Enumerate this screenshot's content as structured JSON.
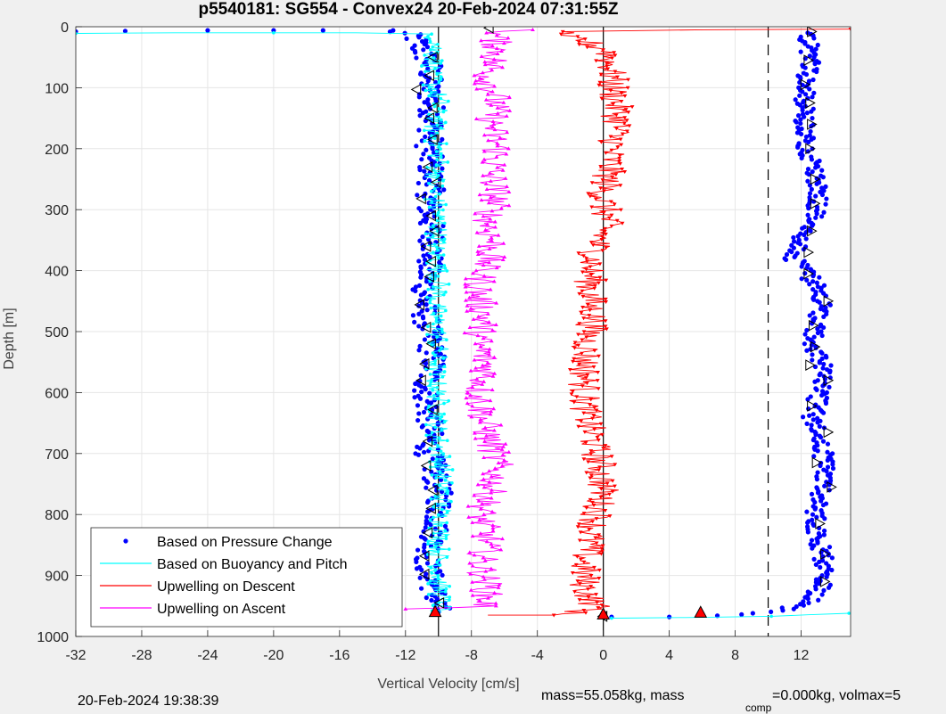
{
  "chart_data": {
    "type": "scatter",
    "title": "p5540181: SG554 - Convex24 20-Feb-2024 07:31:55Z",
    "xlabel": "Vertical Velocity [cm/s]",
    "ylabel": "Depth [m]",
    "xlim": [
      -32,
      15
    ],
    "ylim": [
      0,
      1000
    ],
    "y_reversed": true,
    "grid": true,
    "x_ticks": [
      -32,
      -28,
      -24,
      -20,
      -16,
      -12,
      -8,
      -4,
      0,
      4,
      8,
      12
    ],
    "x_tick_labels": [
      "-32",
      "-28",
      "-24",
      "-20",
      "-16",
      "-12",
      "-8",
      "-4",
      "0",
      "4",
      "8",
      "12"
    ],
    "y_ticks": [
      0,
      100,
      200,
      300,
      400,
      500,
      600,
      700,
      800,
      900,
      1000
    ],
    "y_tick_labels": [
      "0",
      "100",
      "200",
      "300",
      "400",
      "500",
      "600",
      "700",
      "800",
      "900",
      "1000"
    ],
    "reference_lines": [
      {
        "x": -10,
        "style": "solid",
        "color": "#000000"
      },
      {
        "x": 0,
        "style": "solid",
        "color": "#000000"
      },
      {
        "x": 10,
        "style": "dashed",
        "color": "#000000"
      }
    ],
    "legend": {
      "placement": "bottom-left",
      "entries": [
        {
          "label": "Based on Pressure Change",
          "color": "#0000ff",
          "marker": "dot"
        },
        {
          "label": "Based on Buoyancy and Pitch",
          "color": "#00ffff",
          "marker": "line"
        },
        {
          "label": "Upwelling on Descent",
          "color": "#ff0000",
          "marker": "line"
        },
        {
          "label": "Upwelling on Ascent",
          "color": "#ff00ff",
          "marker": "line"
        }
      ]
    },
    "series": [
      {
        "name": "Based on Pressure Change",
        "color": "#0000ff",
        "segments": [
          {
            "base": [
              [
                -32,
                8
              ],
              [
                -29,
                7
              ],
              [
                -24,
                6
              ],
              [
                -20,
                6
              ],
              [
                -17,
                6
              ],
              [
                -13,
                6
              ],
              [
                -11.5,
                15
              ],
              [
                -11,
                40
              ],
              [
                -10.5,
                60
              ],
              [
                -10.6,
                100
              ],
              [
                -10.3,
                150
              ],
              [
                -10.6,
                200
              ],
              [
                -10.4,
                250
              ],
              [
                -10.6,
                300
              ],
              [
                -10.3,
                360
              ],
              [
                -10.7,
                400
              ],
              [
                -10.9,
                460
              ],
              [
                -10.6,
                500
              ],
              [
                -10.3,
                550
              ],
              [
                -10.8,
                590
              ],
              [
                -10.5,
                650
              ],
              [
                -10.6,
                700
              ],
              [
                -10.2,
                730
              ],
              [
                -9.9,
                780
              ],
              [
                -10.2,
                830
              ],
              [
                -10.7,
                880
              ],
              [
                -10.2,
                930
              ],
              [
                -10.0,
                960
              ]
            ],
            "jitter": 0.8
          },
          {
            "base": [
              [
                0.5,
                968
              ],
              [
                4,
                968
              ],
              [
                7,
                966
              ],
              [
                9,
                962
              ],
              [
                11,
                955
              ],
              [
                12.5,
                945
              ],
              [
                13.2,
                920
              ],
              [
                13.4,
                880
              ],
              [
                13.1,
                840
              ],
              [
                12.8,
                800
              ],
              [
                13.3,
                760
              ],
              [
                13.5,
                720
              ],
              [
                13.1,
                680
              ],
              [
                12.7,
                640
              ],
              [
                13.1,
                600
              ],
              [
                13.3,
                560
              ],
              [
                12.7,
                520
              ],
              [
                12.9,
                480
              ],
              [
                13.3,
                450
              ],
              [
                12.8,
                420
              ],
              [
                12.2,
                400
              ],
              [
                11.6,
                380
              ],
              [
                12.0,
                350
              ],
              [
                12.7,
                320
              ],
              [
                13.1,
                280
              ],
              [
                12.9,
                240
              ],
              [
                12.4,
                200
              ],
              [
                12.2,
                150
              ],
              [
                12.2,
                100
              ],
              [
                12.6,
                50
              ],
              [
                12.4,
                10
              ]
            ],
            "jitter": 0.6
          }
        ]
      },
      {
        "name": "Based on Buoyancy and Pitch",
        "color": "#00ffff",
        "segments": [
          {
            "base": [
              [
                -32,
                11
              ],
              [
                -26,
                10
              ],
              [
                -20,
                10
              ],
              [
                -15,
                10
              ],
              [
                -11,
                12
              ],
              [
                -10,
                20
              ],
              [
                -10.2,
                40
              ],
              [
                -10.5,
                80
              ],
              [
                -10.0,
                120
              ],
              [
                -10.3,
                170
              ],
              [
                -10.0,
                220
              ],
              [
                -10.3,
                270
              ],
              [
                -10.0,
                320
              ],
              [
                -10.2,
                370
              ],
              [
                -10.0,
                420
              ],
              [
                -10.2,
                470
              ],
              [
                -10.0,
                520
              ],
              [
                -10.2,
                570
              ],
              [
                -10.0,
                620
              ],
              [
                -10.1,
                670
              ],
              [
                -9.8,
                720
              ],
              [
                -9.8,
                770
              ],
              [
                -9.9,
                820
              ],
              [
                -10.0,
                870
              ],
              [
                -10.0,
                920
              ],
              [
                -9.8,
                960
              ]
            ],
            "jitter": 0.7
          },
          {
            "base": [
              [
                0.5,
                970
              ],
              [
                5,
                969
              ],
              [
                10,
                967
              ],
              [
                14.9,
                962
              ]
            ],
            "jitter": 0.2
          }
        ]
      },
      {
        "name": "Upwelling on Descent",
        "color": "#ff0000",
        "segments": [
          {
            "base": [
              [
                15,
                4
              ],
              [
                6,
                5
              ],
              [
                -2,
                8
              ],
              [
                -3.5,
                12
              ],
              [
                -1.5,
                20
              ],
              [
                0.3,
                40
              ],
              [
                0.5,
                80
              ],
              [
                0.7,
                120
              ],
              [
                0.9,
                160
              ],
              [
                0.5,
                200
              ],
              [
                0.3,
                240
              ],
              [
                0.0,
                280
              ],
              [
                0.2,
                320
              ],
              [
                -0.4,
                360
              ],
              [
                -0.8,
                400
              ],
              [
                -0.8,
                440
              ],
              [
                -0.6,
                480
              ],
              [
                -1.0,
                520
              ],
              [
                -1.1,
                560
              ],
              [
                -1.2,
                600
              ],
              [
                -1.0,
                640
              ],
              [
                -0.6,
                680
              ],
              [
                -0.2,
                720
              ],
              [
                0.0,
                760
              ],
              [
                -0.4,
                800
              ],
              [
                -0.8,
                840
              ],
              [
                -1.2,
                880
              ],
              [
                -1.1,
                920
              ],
              [
                -0.4,
                955
              ],
              [
                -3.0,
                965
              ],
              [
                -7.0,
                965
              ]
            ],
            "jitter": 1.0
          }
        ]
      },
      {
        "name": "Upwelling on Ascent",
        "color": "#ff00ff",
        "segments": [
          {
            "base": [
              [
                -4.0,
                5
              ],
              [
                -6.6,
                10
              ],
              [
                -6.4,
                40
              ],
              [
                -7.0,
                80
              ],
              [
                -6.5,
                120
              ],
              [
                -6.8,
                160
              ],
              [
                -6.4,
                200
              ],
              [
                -6.8,
                240
              ],
              [
                -6.5,
                280
              ],
              [
                -7.0,
                320
              ],
              [
                -6.7,
                360
              ],
              [
                -7.3,
                400
              ],
              [
                -7.6,
                440
              ],
              [
                -7.2,
                480
              ],
              [
                -7.6,
                520
              ],
              [
                -7.0,
                560
              ],
              [
                -7.6,
                600
              ],
              [
                -7.3,
                640
              ],
              [
                -6.9,
                680
              ],
              [
                -6.4,
                720
              ],
              [
                -6.8,
                760
              ],
              [
                -7.4,
                800
              ],
              [
                -7.0,
                840
              ],
              [
                -7.4,
                880
              ],
              [
                -7.0,
                920
              ],
              [
                -7.2,
                950
              ],
              [
                -12.0,
                955
              ]
            ],
            "jitter": 1.0
          }
        ]
      },
      {
        "name": "Descent heading markers",
        "color": "#000000",
        "marker": "triangle-left",
        "points": [
          [
            -6.9,
            2
          ],
          [
            -10.3,
            50
          ],
          [
            -10.5,
            80
          ],
          [
            -11.3,
            103
          ],
          [
            -10.3,
            133
          ],
          [
            -10.5,
            150
          ],
          [
            -10.3,
            185
          ],
          [
            -10.6,
            230
          ],
          [
            -10.1,
            255
          ],
          [
            -11.0,
            282
          ],
          [
            -10.4,
            310
          ],
          [
            -10.2,
            335
          ],
          [
            -10.7,
            360
          ],
          [
            -10.4,
            385
          ],
          [
            -10.5,
            410
          ],
          [
            -11.1,
            456
          ],
          [
            -10.7,
            493
          ],
          [
            -10.4,
            520
          ],
          [
            -10.8,
            553
          ],
          [
            -11.0,
            580
          ],
          [
            -10.3,
            628
          ],
          [
            -10.6,
            680
          ],
          [
            -10.7,
            720
          ],
          [
            -10.3,
            760
          ],
          [
            -10.4,
            790
          ],
          [
            -10.6,
            830
          ],
          [
            -10.8,
            868
          ],
          [
            -10.8,
            898
          ],
          [
            -9.9,
            945
          ],
          [
            0.0,
            967
          ]
        ]
      },
      {
        "name": "Ascent heading markers",
        "color": "#000000",
        "marker": "triangle-right",
        "points": [
          [
            12.6,
            8
          ],
          [
            12.4,
            55
          ],
          [
            12.2,
            95
          ],
          [
            12.5,
            125
          ],
          [
            12.6,
            160
          ],
          [
            12.5,
            200
          ],
          [
            12.8,
            250
          ],
          [
            12.8,
            290
          ],
          [
            12.6,
            335
          ],
          [
            12.4,
            370
          ],
          [
            12.4,
            405
          ],
          [
            13.6,
            450
          ],
          [
            12.7,
            490
          ],
          [
            12.8,
            525
          ],
          [
            12.5,
            555
          ],
          [
            13.6,
            580
          ],
          [
            12.6,
            622
          ],
          [
            13.6,
            665
          ],
          [
            12.9,
            715
          ],
          [
            13.8,
            755
          ],
          [
            13.1,
            815
          ],
          [
            13.4,
            865
          ],
          [
            13.4,
            910
          ]
        ]
      },
      {
        "name": "Endpoint markers",
        "color": "#ff0000",
        "marker": "triangle-up",
        "points": [
          [
            -10.2,
            960
          ],
          [
            0.0,
            964
          ],
          [
            5.9,
            961
          ]
        ]
      }
    ]
  },
  "footer": {
    "timestamp": "20-Feb-2024 19:38:39",
    "mass_text": "mass=55.058kg, mass",
    "comp_sub": "comp",
    "volmax_text": "=0.000kg, volmax=5"
  }
}
